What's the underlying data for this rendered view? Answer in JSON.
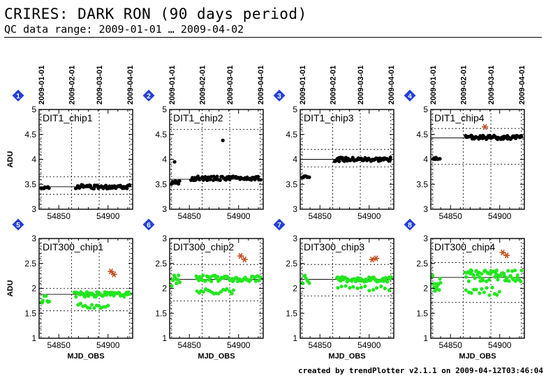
{
  "header": {
    "title": "CRIRES: DARK RON (90 days period)",
    "subtitle": "QC data range: 2009-01-01 … 2009-04-02"
  },
  "footer": {
    "text": "created by trendPlotter v2.1.1 on 2009-04-12T03:46:04"
  },
  "colors": {
    "row1_points": "#000000",
    "row2_points": "#22e61e",
    "outlier": "#c0501e",
    "badge": "#2440d8"
  },
  "chart_data": [
    {
      "type": "scatter",
      "index": "1",
      "label": "DIT1_chip1",
      "ylabel": "ADU",
      "xlabel": "",
      "xlim": [
        54830,
        54925
      ],
      "ylim": [
        3,
        5
      ],
      "yticks": [
        "3",
        "3.5",
        "4",
        "4.5",
        "5"
      ],
      "xticks": [
        "54850",
        "54900"
      ],
      "date_ticks": [
        "2009-01-01",
        "2009-02-01",
        "2009-03-01",
        "2009-04-01"
      ],
      "mean": 3.45,
      "band": [
        3.3,
        3.65
      ],
      "point_color": "#000000",
      "segments": [
        {
          "x0": 54832,
          "x1": 54840,
          "center": 3.43,
          "jitter": 0.02,
          "n": 7,
          "seed": 11
        },
        {
          "x0": 54867,
          "x1": 54922,
          "center": 3.45,
          "jitter": 0.04,
          "n": 55,
          "seed": 12
        }
      ],
      "points": [],
      "outliers": []
    },
    {
      "type": "scatter",
      "index": "2",
      "label": "DIT1_chip2",
      "ylabel": "",
      "xlabel": "",
      "xlim": [
        54830,
        54925
      ],
      "ylim": [
        3,
        5
      ],
      "yticks": [
        "3",
        "3.5",
        "4",
        "4.5",
        "5"
      ],
      "xticks": [
        "54850",
        "54900"
      ],
      "date_ticks": [
        "2009-01-01",
        "2009-02-01",
        "2009-03-01",
        "2009-04-01"
      ],
      "mean": 3.6,
      "band": [
        3.4,
        4.6
      ],
      "point_color": "#000000",
      "segments": [
        {
          "x0": 54832,
          "x1": 54840,
          "center": 3.53,
          "jitter": 0.05,
          "n": 8,
          "seed": 21
        },
        {
          "x0": 54852,
          "x1": 54922,
          "center": 3.62,
          "jitter": 0.04,
          "n": 65,
          "seed": 22
        }
      ],
      "points": [
        {
          "x": 54835,
          "y": 3.95
        },
        {
          "x": 54884,
          "y": 4.38
        }
      ],
      "outliers": []
    },
    {
      "type": "scatter",
      "index": "3",
      "label": "DIT1_chip3",
      "ylabel": "",
      "xlabel": "",
      "xlim": [
        54830,
        54925
      ],
      "ylim": [
        3,
        5
      ],
      "yticks": [
        "3",
        "3.5",
        "4",
        "4.5",
        "5"
      ],
      "xticks": [
        "54850",
        "54900"
      ],
      "date_ticks": [
        "2009-01-01",
        "2009-02-01",
        "2009-03-01",
        "2009-04-01"
      ],
      "mean": 4.0,
      "band": [
        3.85,
        4.2
      ],
      "point_color": "#000000",
      "segments": [
        {
          "x0": 54832,
          "x1": 54839,
          "center": 3.65,
          "jitter": 0.02,
          "n": 7,
          "seed": 31
        },
        {
          "x0": 54865,
          "x1": 54922,
          "center": 4.0,
          "jitter": 0.04,
          "n": 60,
          "seed": 32
        }
      ],
      "points": [],
      "outliers": []
    },
    {
      "type": "scatter",
      "index": "4",
      "label": "DIT1_chip4",
      "ylabel": "",
      "xlabel": "",
      "xlim": [
        54830,
        54925
      ],
      "ylim": [
        3,
        5
      ],
      "yticks": [
        "3",
        "3.5",
        "4",
        "4.5",
        "5"
      ],
      "xticks": [
        "54850",
        "54900"
      ],
      "date_ticks": [
        "2009-01-01",
        "2009-02-01",
        "2009-03-01",
        "2009-04-01"
      ],
      "mean": 4.43,
      "band": [
        3.9,
        4.62
      ],
      "point_color": "#000000",
      "segments": [
        {
          "x0": 54832,
          "x1": 54839,
          "center": 4.02,
          "jitter": 0.02,
          "n": 7,
          "seed": 41
        },
        {
          "x0": 54865,
          "x1": 54922,
          "center": 4.44,
          "jitter": 0.04,
          "n": 60,
          "seed": 42
        }
      ],
      "points": [],
      "outliers": [
        {
          "x": 54885,
          "y": 4.65
        }
      ]
    },
    {
      "type": "scatter",
      "index": "5",
      "label": "DIT300_chip1",
      "ylabel": "ADU",
      "xlabel": "MJD_OBS",
      "xlim": [
        54830,
        54925
      ],
      "ylim": [
        1,
        3
      ],
      "yticks": [
        "1",
        "1.5",
        "2",
        "2.5",
        "3"
      ],
      "xticks": [
        "54850",
        "54900"
      ],
      "date_ticks": [],
      "mean": 1.88,
      "band": [
        1.55,
        2.0
      ],
      "point_color": "#22e61e",
      "segments": [
        {
          "x0": 54832,
          "x1": 54840,
          "center": 1.78,
          "jitter": 0.08,
          "n": 9,
          "seed": 51
        },
        {
          "x0": 54866,
          "x1": 54922,
          "center": 1.88,
          "jitter": 0.05,
          "n": 50,
          "seed": 52
        },
        {
          "x0": 54870,
          "x1": 54900,
          "center": 1.65,
          "jitter": 0.05,
          "n": 14,
          "seed": 53
        }
      ],
      "points": [],
      "outliers": [
        {
          "x": 54903,
          "y": 2.34
        },
        {
          "x": 54906,
          "y": 2.28
        }
      ]
    },
    {
      "type": "scatter",
      "index": "6",
      "label": "DIT300_chip2",
      "ylabel": "",
      "xlabel": "MJD_OBS",
      "xlim": [
        54830,
        54925
      ],
      "ylim": [
        1,
        3
      ],
      "yticks": [
        "1",
        "1.5",
        "2",
        "2.5",
        "3"
      ],
      "xticks": [
        "54850",
        "54900"
      ],
      "date_ticks": [],
      "mean": 2.18,
      "band": [
        1.75,
        2.48
      ],
      "point_color": "#22e61e",
      "segments": [
        {
          "x0": 54832,
          "x1": 54840,
          "center": 2.15,
          "jitter": 0.12,
          "n": 10,
          "seed": 61
        },
        {
          "x0": 54857,
          "x1": 54922,
          "center": 2.2,
          "jitter": 0.06,
          "n": 55,
          "seed": 62
        },
        {
          "x0": 54858,
          "x1": 54895,
          "center": 1.92,
          "jitter": 0.07,
          "n": 18,
          "seed": 63
        }
      ],
      "points": [],
      "outliers": [
        {
          "x": 54902,
          "y": 2.65
        },
        {
          "x": 54906,
          "y": 2.58
        }
      ]
    },
    {
      "type": "scatter",
      "index": "7",
      "label": "DIT300_chip3",
      "ylabel": "",
      "xlabel": "MJD_OBS",
      "xlim": [
        54830,
        54925
      ],
      "ylim": [
        1,
        3
      ],
      "yticks": [
        "1",
        "1.5",
        "2",
        "2.5",
        "3"
      ],
      "xticks": [
        "54850",
        "54900"
      ],
      "date_ticks": [],
      "mean": 2.18,
      "band": [
        1.85,
        2.48
      ],
      "point_color": "#22e61e",
      "segments": [
        {
          "x0": 54832,
          "x1": 54839,
          "center": 2.18,
          "jitter": 0.08,
          "n": 8,
          "seed": 71
        },
        {
          "x0": 54867,
          "x1": 54922,
          "center": 2.18,
          "jitter": 0.05,
          "n": 55,
          "seed": 72
        },
        {
          "x0": 54868,
          "x1": 54920,
          "center": 2.0,
          "jitter": 0.05,
          "n": 14,
          "seed": 73
        }
      ],
      "points": [],
      "outliers": [
        {
          "x": 54903,
          "y": 2.58
        },
        {
          "x": 54907,
          "y": 2.6
        }
      ]
    },
    {
      "type": "scatter",
      "index": "8",
      "label": "DIT300_chip4",
      "ylabel": "",
      "xlabel": "MJD_OBS",
      "xlim": [
        54830,
        54925
      ],
      "ylim": [
        1,
        3
      ],
      "yticks": [
        "1",
        "1.5",
        "2",
        "2.5",
        "3"
      ],
      "xticks": [
        "54850",
        "54900"
      ],
      "date_ticks": [],
      "mean": 2.22,
      "band": [
        1.72,
        2.52
      ],
      "point_color": "#22e61e",
      "segments": [
        {
          "x0": 54832,
          "x1": 54840,
          "center": 2.1,
          "jitter": 0.16,
          "n": 12,
          "seed": 81
        },
        {
          "x0": 54865,
          "x1": 54922,
          "center": 2.25,
          "jitter": 0.12,
          "n": 60,
          "seed": 82
        },
        {
          "x0": 54866,
          "x1": 54900,
          "center": 1.95,
          "jitter": 0.1,
          "n": 14,
          "seed": 83
        }
      ],
      "points": [],
      "outliers": [
        {
          "x": 54903,
          "y": 2.72
        },
        {
          "x": 54907,
          "y": 2.66
        }
      ]
    }
  ]
}
